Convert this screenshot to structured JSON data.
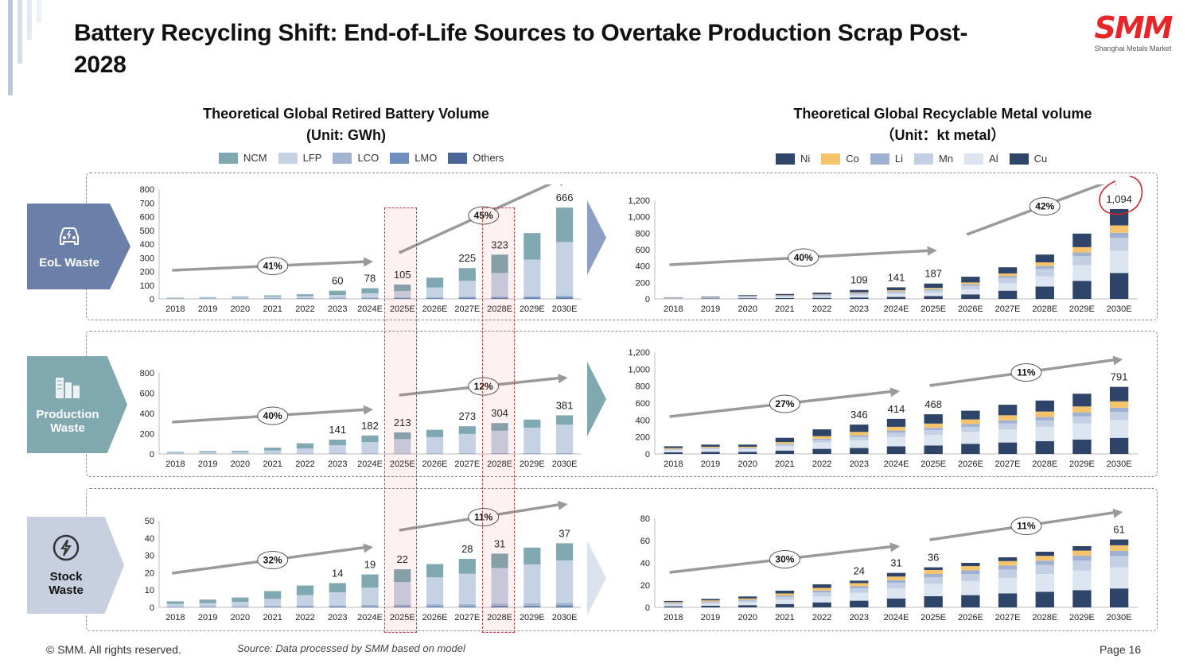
{
  "title": "Battery Recycling Shift: End-of-Life Sources to Overtake Production Scrap Post-2028",
  "logo": {
    "mark": "SMM",
    "subtitle": "Shanghai Metals Market"
  },
  "left_title": {
    "line1": "Theoretical Global Retired Battery Volume",
    "line2": "(Unit: GWh)"
  },
  "right_title": {
    "line1": "Theoretical Global Recyclable Metal volume",
    "line2": "（Unit：kt metal）"
  },
  "left_legend": [
    {
      "name": "NCM",
      "color": "#7fa8b0"
    },
    {
      "name": "LFP",
      "color": "#c5d2e3"
    },
    {
      "name": "LCO",
      "color": "#a3b4d1"
    },
    {
      "name": "LMO",
      "color": "#6f8fbf"
    },
    {
      "name": "Others",
      "color": "#4a6699"
    }
  ],
  "right_legend": [
    {
      "name": "Ni",
      "color": "#2e4468"
    },
    {
      "name": "Co",
      "color": "#f5c36b"
    },
    {
      "name": "Li",
      "color": "#9fb1d1"
    },
    {
      "name": "Mn",
      "color": "#c3d0e4"
    },
    {
      "name": "Al",
      "color": "#dde5f0"
    },
    {
      "name": "Cu",
      "color": "#2e4468"
    }
  ],
  "rows": [
    {
      "label_line1": "EoL Waste",
      "label_line2": "",
      "label_color": "#6b7fa8",
      "icon": "car-icon"
    },
    {
      "label_line1": "Production",
      "label_line2": "Waste",
      "label_color": "#7fa9ae",
      "icon": "factory-icon"
    },
    {
      "label_line1": "Stock",
      "label_line2": "Waste",
      "label_color": "#c8d0df",
      "icon": "lightning-icon"
    }
  ],
  "chart_data": [
    {
      "id": "eol-battery",
      "type": "bar",
      "stacked": true,
      "categories": [
        "2018",
        "2019",
        "2020",
        "2021",
        "2022",
        "2023",
        "2024E",
        "2025E",
        "2026E",
        "2027E",
        "2028E",
        "2029E",
        "2030E"
      ],
      "ylim": [
        0,
        800
      ],
      "yticks": [
        "0",
        "100",
        "200",
        "300",
        "400",
        "500",
        "600",
        "700",
        "800"
      ],
      "ytick_values": [
        0,
        100,
        200,
        300,
        400,
        500,
        600,
        700,
        800
      ],
      "series": [
        {
          "name": "Others",
          "values": [
            1,
            1,
            1,
            1,
            1,
            1,
            2,
            2,
            2,
            3,
            3,
            4,
            5
          ]
        },
        {
          "name": "LMO",
          "values": [
            1,
            1,
            1,
            2,
            2,
            3,
            3,
            4,
            5,
            6,
            7,
            8,
            9
          ]
        },
        {
          "name": "LCO",
          "values": [
            2,
            3,
            3,
            4,
            4,
            5,
            6,
            6,
            7,
            8,
            9,
            10,
            11
          ]
        },
        {
          "name": "LFP",
          "values": [
            3,
            4,
            6,
            10,
            14,
            20,
            30,
            45,
            70,
            115,
            170,
            265,
            390
          ]
        },
        {
          "name": "NCM",
          "values": [
            3,
            4,
            6,
            9,
            13,
            31,
            37,
            48,
            71,
            93,
            134,
            193,
            251
          ]
        }
      ],
      "labels": [
        null,
        null,
        null,
        null,
        null,
        "60",
        "78",
        "105",
        null,
        "225",
        "323",
        null,
        "666"
      ],
      "arrows": [
        {
          "from": "2018",
          "to": "2024E",
          "text": "41%"
        },
        {
          "from": "2025E",
          "to": "2030E",
          "text": "45%"
        }
      ]
    },
    {
      "id": "eol-metal",
      "type": "bar",
      "stacked": true,
      "categories": [
        "2018",
        "2019",
        "2020",
        "2021",
        "2022",
        "2023",
        "2024E",
        "2025E",
        "2026E",
        "2027E",
        "2028E",
        "2029E",
        "2030E"
      ],
      "ylim": [
        0,
        1200
      ],
      "yticks": [
        "0",
        "200",
        "400",
        "600",
        "800",
        "1,000",
        "1,200"
      ],
      "ytick_values": [
        0,
        200,
        400,
        600,
        800,
        1000,
        1200
      ],
      "series": [
        {
          "name": "Cu",
          "values": [
            3,
            5,
            8,
            10,
            13,
            18,
            25,
            35,
            55,
            100,
            150,
            220,
            315
          ]
        },
        {
          "name": "Al",
          "values": [
            4,
            5,
            10,
            13,
            16,
            25,
            32,
            40,
            60,
            90,
            125,
            190,
            270
          ]
        },
        {
          "name": "Mn",
          "values": [
            4,
            6,
            10,
            12,
            15,
            20,
            25,
            30,
            45,
            65,
            90,
            110,
            160
          ]
        },
        {
          "name": "Li",
          "values": [
            2,
            3,
            4,
            5,
            7,
            10,
            12,
            15,
            20,
            25,
            35,
            45,
            60
          ]
        },
        {
          "name": "Co",
          "values": [
            3,
            3,
            4,
            5,
            5,
            8,
            12,
            15,
            20,
            30,
            45,
            65,
            90
          ]
        },
        {
          "name": "Ni",
          "values": [
            4,
            6,
            10,
            15,
            20,
            28,
            35,
            52,
            70,
            75,
            95,
            165,
            199
          ]
        }
      ],
      "labels": [
        null,
        null,
        null,
        null,
        null,
        "109",
        "141",
        "187",
        null,
        null,
        null,
        null,
        "1,094"
      ],
      "arrows": [
        {
          "from": "2018",
          "to": "2025E",
          "text": "40%"
        },
        {
          "from": "2026E",
          "to": "2030E",
          "text": "42%"
        }
      ]
    },
    {
      "id": "prod-battery",
      "type": "bar",
      "stacked": true,
      "categories": [
        "2018",
        "2019",
        "2020",
        "2021",
        "2022",
        "2023",
        "2024E",
        "2025E",
        "2026E",
        "2027E",
        "2028E",
        "2029E",
        "2030E"
      ],
      "ylim": [
        0,
        800
      ],
      "yticks": [
        "0",
        "200",
        "400",
        "600",
        "800"
      ],
      "ytick_values": [
        0,
        200,
        400,
        600,
        800
      ],
      "series": [
        {
          "name": "Others",
          "values": [
            1,
            1,
            1,
            1,
            1,
            1,
            1,
            1,
            1,
            1,
            2,
            2,
            2
          ]
        },
        {
          "name": "LMO",
          "values": [
            1,
            1,
            1,
            1,
            1,
            2,
            2,
            2,
            2,
            2,
            3,
            3,
            3
          ]
        },
        {
          "name": "LCO",
          "values": [
            1,
            1,
            1,
            2,
            2,
            3,
            3,
            3,
            3,
            4,
            4,
            4,
            4
          ]
        },
        {
          "name": "LFP",
          "values": [
            10,
            14,
            15,
            30,
            50,
            80,
            110,
            140,
            160,
            190,
            220,
            250,
            280
          ]
        },
        {
          "name": "NCM",
          "values": [
            8,
            11,
            12,
            28,
            51,
            55,
            66,
            67,
            72,
            76,
            75,
            80,
            92
          ]
        }
      ],
      "labels": [
        null,
        null,
        null,
        null,
        null,
        "141",
        "182",
        "213",
        null,
        "273",
        "304",
        null,
        "381"
      ],
      "arrows": [
        {
          "from": "2018",
          "to": "2024E",
          "text": "40%"
        },
        {
          "from": "2025E",
          "to": "2030E",
          "text": "12%"
        }
      ]
    },
    {
      "id": "prod-metal",
      "type": "bar",
      "stacked": true,
      "categories": [
        "2018",
        "2019",
        "2020",
        "2021",
        "2022",
        "2023",
        "2024E",
        "2025E",
        "2026E",
        "2027E",
        "2028E",
        "2029E",
        "2030E"
      ],
      "ylim": [
        0,
        1200
      ],
      "yticks": [
        "0",
        "200",
        "400",
        "600",
        "800",
        "1,000",
        "1,200"
      ],
      "ytick_values": [
        0,
        200,
        400,
        600,
        800,
        1000,
        1200
      ],
      "series": [
        {
          "name": "Cu",
          "values": [
            20,
            25,
            25,
            40,
            60,
            70,
            90,
            100,
            120,
            135,
            150,
            170,
            190
          ]
        },
        {
          "name": "Al",
          "values": [
            25,
            30,
            30,
            50,
            75,
            90,
            110,
            125,
            140,
            155,
            170,
            190,
            210
          ]
        },
        {
          "name": "Mn",
          "values": [
            10,
            12,
            12,
            20,
            30,
            40,
            50,
            55,
            60,
            70,
            75,
            85,
            95
          ]
        },
        {
          "name": "Li",
          "values": [
            5,
            6,
            6,
            10,
            15,
            20,
            25,
            28,
            32,
            36,
            40,
            45,
            50
          ]
        },
        {
          "name": "Co",
          "values": [
            10,
            12,
            12,
            20,
            30,
            40,
            45,
            50,
            55,
            60,
            65,
            70,
            75
          ]
        },
        {
          "name": "Ni",
          "values": [
            20,
            25,
            25,
            50,
            80,
            86,
            94,
            110,
            103,
            124,
            130,
            150,
            171
          ]
        }
      ],
      "labels": [
        null,
        null,
        null,
        null,
        null,
        "346",
        "414",
        "468",
        null,
        null,
        null,
        null,
        "791"
      ],
      "arrows": [
        {
          "from": "2018",
          "to": "2024E",
          "text": "27%"
        },
        {
          "from": "2025E",
          "to": "2030E",
          "text": "11%"
        }
      ]
    },
    {
      "id": "stock-battery",
      "type": "bar",
      "stacked": true,
      "categories": [
        "2018",
        "2019",
        "2020",
        "2021",
        "2022",
        "2023",
        "2024E",
        "2025E",
        "2026E",
        "2027E",
        "2028E",
        "2029E",
        "2030E"
      ],
      "ylim": [
        0,
        50
      ],
      "yticks": [
        "0",
        "10",
        "20",
        "30",
        "40",
        "50"
      ],
      "ytick_values": [
        0,
        10,
        20,
        30,
        40,
        50
      ],
      "series": [
        {
          "name": "Others",
          "values": [
            0.1,
            0.1,
            0.1,
            0.1,
            0.2,
            0.2,
            0.2,
            0.3,
            0.3,
            0.3,
            0.4,
            0.4,
            0.5
          ]
        },
        {
          "name": "LMO",
          "values": [
            0.2,
            0.2,
            0.2,
            0.3,
            0.3,
            0.3,
            0.4,
            0.4,
            0.5,
            0.5,
            0.6,
            0.6,
            0.7
          ]
        },
        {
          "name": "LCO",
          "values": [
            0.3,
            0.4,
            0.4,
            0.5,
            0.6,
            0.7,
            0.8,
            0.9,
            1,
            1.1,
            1.2,
            1.3,
            1.4
          ]
        },
        {
          "name": "LFP",
          "values": [
            1.4,
            1.8,
            2.5,
            4,
            6,
            7.5,
            10,
            13,
            15.5,
            17.5,
            20.5,
            22.5,
            24.5
          ]
        },
        {
          "name": "NCM",
          "values": [
            1.5,
            2,
            2.5,
            4.5,
            5.5,
            5.3,
            7.6,
            7.4,
            7.7,
            8.6,
            8.3,
            9.7,
            9.9
          ]
        }
      ],
      "labels": [
        null,
        null,
        null,
        null,
        null,
        "14",
        "19",
        "22",
        null,
        "28",
        "31",
        null,
        "37"
      ],
      "arrows": [
        {
          "from": "2018",
          "to": "2024E",
          "text": "32%"
        },
        {
          "from": "2025E",
          "to": "2030E",
          "text": "11%"
        }
      ]
    },
    {
      "id": "stock-metal",
      "type": "bar",
      "stacked": true,
      "categories": [
        "2018",
        "2019",
        "2020",
        "2021",
        "2022",
        "2023",
        "2024E",
        "2025E",
        "2026E",
        "2027E",
        "2028E",
        "2029E",
        "2030E"
      ],
      "ylim": [
        0,
        80
      ],
      "yticks": [
        "0",
        "20",
        "40",
        "60",
        "80"
      ],
      "ytick_values": [
        0,
        20,
        40,
        60,
        80
      ],
      "series": [
        {
          "name": "Cu",
          "values": [
            1,
            1.5,
            2,
            3,
            4.5,
            6,
            8,
            10,
            11,
            12.5,
            14,
            15.5,
            17
          ]
        },
        {
          "name": "Al",
          "values": [
            1.5,
            2,
            2.5,
            4,
            5.5,
            7,
            9,
            11,
            12.5,
            14,
            16,
            17.5,
            19
          ]
        },
        {
          "name": "Mn",
          "values": [
            1,
            1.2,
            1.5,
            2.5,
            3.5,
            4,
            5,
            6,
            6.5,
            7.5,
            8,
            9,
            10
          ]
        },
        {
          "name": "Li",
          "values": [
            0.5,
            0.6,
            0.8,
            1.2,
            1.6,
            2,
            2.5,
            3,
            3.3,
            3.6,
            4,
            4.4,
            4.8
          ]
        },
        {
          "name": "Co",
          "values": [
            0.8,
            1,
            1.2,
            1.8,
            2.4,
            2.8,
            3.2,
            3.6,
            3.8,
            4,
            4.3,
            4.6,
            5
          ]
        },
        {
          "name": "Ni",
          "values": [
            1,
            1.3,
            1.8,
            2.5,
            3.2,
            2.2,
            3.3,
            2.4,
            2.9,
            3.4,
            3.7,
            4,
            5.2
          ]
        }
      ],
      "labels": [
        null,
        null,
        null,
        null,
        null,
        "24",
        "31",
        "36",
        null,
        null,
        null,
        null,
        "61"
      ],
      "arrows": [
        {
          "from": "2018",
          "to": "2024E",
          "text": "30%"
        },
        {
          "from": "2025E",
          "to": "2030E",
          "text": "11%"
        }
      ]
    }
  ],
  "footer": {
    "copyright": "© SMM. All rights reserved.",
    "source": "Source: Data processed by SMM based on model",
    "page": "Page 16"
  }
}
